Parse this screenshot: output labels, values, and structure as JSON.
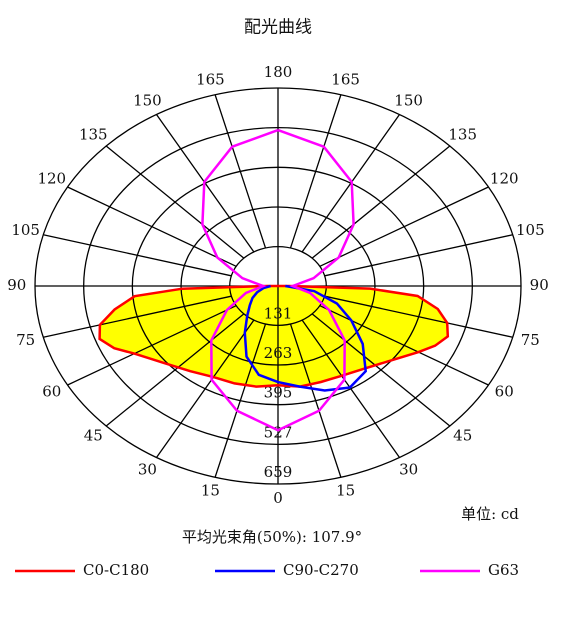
{
  "chart_data": {
    "type": "polar",
    "title": "配光曲线",
    "rlim": [
      0,
      659
    ],
    "rticks": [
      131,
      263,
      395,
      527,
      659
    ],
    "thetaticks": [
      0,
      15,
      30,
      45,
      60,
      75,
      90,
      105,
      120,
      135,
      150,
      165,
      180
    ],
    "annotations": [
      "单位: cd",
      "平均光束角(50%): 107.9°"
    ],
    "series": [
      {
        "name": "C0-C180",
        "color": "#ff0000",
        "fill": "#ffff00",
        "x": [
          -90,
          -88,
          -85,
          -80,
          -75,
          -70,
          -65,
          -60,
          -50,
          -40,
          -30,
          -20,
          -10,
          0,
          10,
          20,
          30,
          40,
          50,
          60,
          65,
          70,
          75,
          80,
          85,
          88,
          90
        ],
        "values": [
          30,
          260,
          390,
          450,
          500,
          515,
          490,
          450,
          400,
          370,
          350,
          345,
          340,
          330,
          340,
          340,
          345,
          360,
          390,
          440,
          470,
          490,
          475,
          440,
          380,
          250,
          30
        ]
      },
      {
        "name": "C90-C270",
        "color": "#0000ff",
        "x": [
          -90,
          -80,
          -70,
          -60,
          -50,
          -40,
          -30,
          -20,
          -10,
          0,
          10,
          20,
          30,
          40,
          50,
          60,
          70,
          80,
          90
        ],
        "values": [
          20,
          40,
          60,
          80,
          100,
          130,
          180,
          250,
          300,
          320,
          340,
          370,
          390,
          370,
          300,
          230,
          170,
          100,
          20
        ]
      },
      {
        "name": "G63",
        "color": "#ff00ff",
        "x": [
          -180,
          -165,
          -150,
          -135,
          -120,
          -105,
          -90,
          -75,
          -60,
          -45,
          -30,
          -15,
          0,
          15,
          30,
          45,
          60,
          75,
          90,
          105,
          120,
          135,
          150,
          165,
          180
        ],
        "values": [
          519,
          480,
          400,
          290,
          190,
          100,
          40,
          90,
          160,
          256,
          360,
          430,
          480,
          430,
          360,
          256,
          160,
          90,
          40,
          100,
          190,
          290,
          400,
          480,
          519
        ]
      }
    ]
  }
}
